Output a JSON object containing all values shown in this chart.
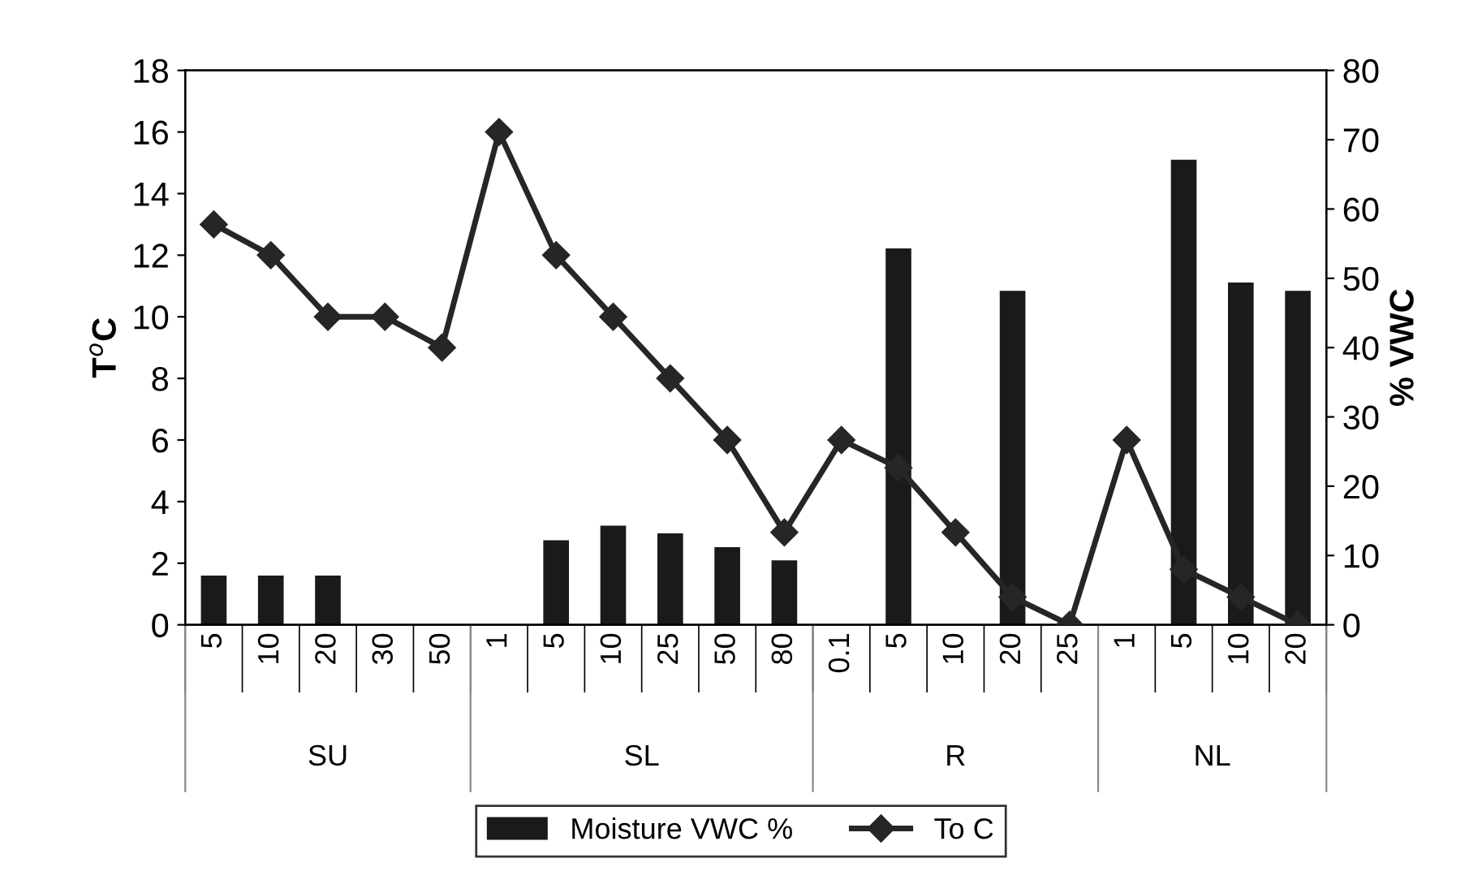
{
  "chart_data": {
    "type": "bar",
    "categories": [
      "5",
      "10",
      "20",
      "30",
      "50",
      "1",
      "5",
      "10",
      "25",
      "50",
      "80",
      "0.1",
      "5",
      "10",
      "20",
      "25",
      "1",
      "5",
      "10",
      "20"
    ],
    "annotations": [
      "SU",
      "SL",
      "R",
      "NL"
    ],
    "ylabel": "T$^{o}$C",
    "y2label": "% VWC",
    "ylim": [
      0,
      18
    ],
    "yticks": [
      0,
      2,
      4,
      6,
      8,
      10,
      12,
      14,
      16,
      18
    ],
    "y2lim": [
      0,
      80
    ],
    "y2ticks": [
      0,
      10,
      20,
      30,
      40,
      50,
      60,
      70,
      80
    ],
    "series": [
      {
        "name": "Moisture VWC %",
        "axis": "y2",
        "color": "#1a1a1a",
        "values": [
          7.1,
          7.1,
          7.1,
          null,
          null,
          null,
          12.2,
          14.3,
          13.2,
          11.2,
          9.3,
          null,
          54.3,
          null,
          48.2,
          null,
          null,
          67.1,
          49.4,
          48.2
        ]
      },
      {
        "name": "To C",
        "type": "line",
        "color": "#262626",
        "marker": "diamond",
        "values": [
          13,
          12,
          10,
          10,
          9,
          16,
          12,
          10,
          8,
          6,
          3,
          6,
          5.1,
          3,
          0.9,
          0,
          6,
          1.8,
          0.9,
          0
        ]
      }
    ],
    "legend": "bottom",
    "grid": false
  }
}
